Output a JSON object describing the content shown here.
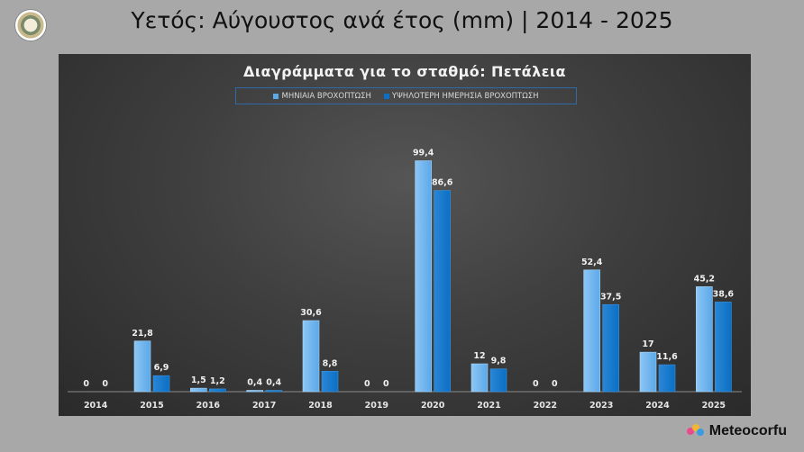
{
  "page": {
    "title": "Υετός: Αύγουστος ανά έτος (mm) | 2014 - 2025",
    "brand": "Meteocorfu"
  },
  "colors": {
    "series1": "#5ba8e8",
    "series2": "#0b6fc4",
    "background": "#a8a8a8",
    "legend_border": "#2f6aa6"
  },
  "chart_data": {
    "type": "bar",
    "title": "Διαγράμματα για το σταθμό: Πετάλεια",
    "categories": [
      "2014",
      "2015",
      "2016",
      "2017",
      "2018",
      "2019",
      "2020",
      "2021",
      "2022",
      "2023",
      "2024",
      "2025"
    ],
    "series": [
      {
        "name": "ΜΗΝΙΑΙΑ ΒΡΟΧΟΠΤΩΣΗ",
        "values": [
          0,
          21.8,
          1.5,
          0.4,
          30.6,
          0,
          99.4,
          12,
          0,
          52.4,
          17,
          45.2
        ],
        "labels": [
          "0",
          "21,8",
          "1,5",
          "0,4",
          "30,6",
          "0",
          "99,4",
          "12",
          "0",
          "52,4",
          "17",
          "45,2"
        ]
      },
      {
        "name": "ΥΨΗΛΟΤΕΡΗ ΗΜΕΡΗΣΙΑ ΒΡΟΧΟΠΤΩΣΗ",
        "values": [
          0,
          6.9,
          1.2,
          0.4,
          8.8,
          0,
          86.6,
          9.8,
          0,
          37.5,
          11.6,
          38.6
        ],
        "labels": [
          "0",
          "6,9",
          "1,2",
          "0,4",
          "8,8",
          "0",
          "86,6",
          "9,8",
          "0",
          "37,5",
          "11,6",
          "38,6"
        ]
      }
    ],
    "ylim": [
      0,
      100
    ],
    "grid": false,
    "legend_position": "top"
  }
}
